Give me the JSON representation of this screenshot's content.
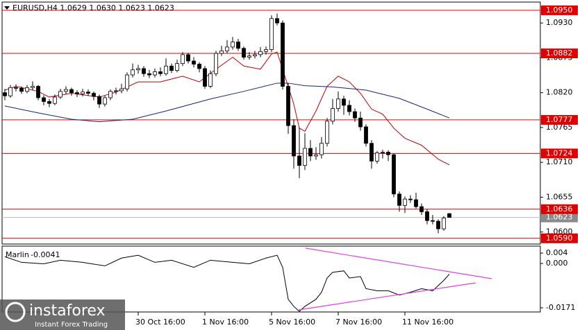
{
  "chart_data": [
    {
      "type": "candlestick",
      "title": "EURUSD,H4  1.0629 1.0630 1.0623 1.0623",
      "categories": [
        null,
        null,
        null,
        null,
        null,
        null,
        null,
        null,
        null,
        null,
        null,
        null,
        null,
        null,
        null,
        null,
        null,
        null,
        null,
        null,
        null,
        null,
        null,
        null,
        "30 Oct 16:00",
        null,
        null,
        null,
        null,
        null,
        null,
        null,
        null,
        null,
        null,
        null,
        "1 Nov 16:00",
        null,
        null,
        null,
        null,
        null,
        null,
        null,
        null,
        null,
        null,
        null,
        "5 Nov 16:00",
        null,
        null,
        null,
        null,
        null,
        null,
        null,
        null,
        null,
        null,
        null,
        "7 Nov 16:00",
        null,
        null,
        null,
        null,
        null,
        null,
        null,
        null,
        null,
        null,
        null,
        "11 Nov 16:00",
        null,
        null,
        null,
        null,
        null,
        null,
        null,
        null
      ],
      "open": [
        1.082,
        1.0815,
        1.0828,
        1.0827,
        1.0822,
        1.0828,
        1.083,
        1.0812,
        1.0806,
        1.0803,
        1.0813,
        1.0822,
        1.0825,
        1.082,
        1.0818,
        1.0821,
        1.0819,
        1.0814,
        1.0802,
        1.0812,
        1.0822,
        1.0823,
        1.0826,
        1.0848,
        1.0856,
        1.0858,
        1.085,
        1.0848,
        1.0853,
        1.085,
        1.0862,
        1.0855,
        1.0866,
        1.088,
        1.087,
        1.0865,
        1.0858,
        1.083,
        1.085,
        1.0882,
        1.0886,
        1.0892,
        1.09,
        1.089,
        1.0876,
        1.0878,
        1.088,
        1.0885,
        1.0888,
        1.0937,
        1.093,
        1.083,
        1.0768,
        1.072,
        1.0705,
        1.0732,
        1.072,
        1.0722,
        1.074,
        1.0775,
        1.0795,
        1.081,
        1.08,
        1.079,
        1.078,
        1.0766,
        1.074,
        1.0712,
        1.0725,
        1.0726,
        1.0722,
        1.066,
        1.0642,
        1.0652,
        1.0651,
        1.064,
        1.0632,
        1.0618,
        1.0617,
        1.0605,
        1.0629
      ],
      "high": [
        1.0826,
        1.0832,
        1.0833,
        1.083,
        1.0832,
        1.0838,
        1.0832,
        1.0816,
        1.081,
        1.0817,
        1.0826,
        1.083,
        1.0828,
        1.0824,
        1.0826,
        1.0825,
        1.0822,
        1.0817,
        1.0815,
        1.0825,
        1.0828,
        1.0834,
        1.0852,
        1.0866,
        1.0864,
        1.0862,
        1.0856,
        1.0858,
        1.086,
        1.0874,
        1.0866,
        1.0872,
        1.0884,
        1.0883,
        1.0876,
        1.0868,
        1.0862,
        1.0855,
        1.0886,
        1.0894,
        1.0903,
        1.0908,
        1.0905,
        1.0893,
        1.0884,
        1.0886,
        1.0892,
        1.0893,
        1.0942,
        1.0945,
        1.0934,
        1.0835,
        1.0778,
        1.0765,
        1.0756,
        1.0745,
        1.0734,
        1.075,
        1.078,
        1.081,
        1.0822,
        1.0815,
        1.0808,
        1.0795,
        1.079,
        1.077,
        1.0745,
        1.0728,
        1.073,
        1.0729,
        1.0724,
        1.0664,
        1.0656,
        1.0658,
        1.0662,
        1.0645,
        1.0636,
        1.0627,
        1.062,
        1.0625,
        1.063
      ],
      "low": [
        1.0808,
        1.0812,
        1.0822,
        1.0818,
        1.0819,
        1.0824,
        1.0808,
        1.08,
        1.0797,
        1.08,
        1.081,
        1.0818,
        1.0815,
        1.0813,
        1.0814,
        1.0815,
        1.0808,
        1.0796,
        1.0798,
        1.0808,
        1.0817,
        1.0819,
        1.0822,
        1.0844,
        1.085,
        1.0845,
        1.0843,
        1.0844,
        1.0846,
        1.0847,
        1.0851,
        1.0852,
        1.0862,
        1.0866,
        1.086,
        1.0852,
        1.0826,
        1.0827,
        1.0846,
        1.0878,
        1.0882,
        1.0888,
        1.0886,
        1.0872,
        1.0872,
        1.0874,
        1.0876,
        1.088,
        1.0884,
        1.0926,
        1.0825,
        1.0755,
        1.07,
        1.0685,
        1.0698,
        1.0712,
        1.0714,
        1.0716,
        1.0735,
        1.077,
        1.079,
        1.0785,
        1.0784,
        1.0774,
        1.076,
        1.0735,
        1.07,
        1.0708,
        1.0716,
        1.0712,
        1.0655,
        1.0632,
        1.063,
        1.0646,
        1.0637,
        1.0627,
        1.0612,
        1.0612,
        1.0598,
        1.0602,
        1.0623
      ],
      "close": [
        1.0815,
        1.0828,
        1.0827,
        1.0822,
        1.0828,
        1.083,
        1.0812,
        1.0806,
        1.0803,
        1.0813,
        1.0822,
        1.0825,
        1.082,
        1.0818,
        1.0821,
        1.0819,
        1.0814,
        1.0802,
        1.0812,
        1.0822,
        1.0823,
        1.0826,
        1.0848,
        1.0856,
        1.0858,
        1.085,
        1.0848,
        1.0853,
        1.085,
        1.0862,
        1.0855,
        1.0866,
        1.088,
        1.087,
        1.0865,
        1.0858,
        1.083,
        1.085,
        1.0882,
        1.0886,
        1.0892,
        1.09,
        1.089,
        1.0876,
        1.0878,
        1.088,
        1.0885,
        1.0888,
        1.0937,
        1.093,
        1.083,
        1.0768,
        1.072,
        1.0705,
        1.0732,
        1.072,
        1.0722,
        1.074,
        1.0775,
        1.0795,
        1.081,
        1.08,
        1.079,
        1.078,
        1.0766,
        1.074,
        1.0712,
        1.0725,
        1.0726,
        1.0722,
        1.066,
        1.0642,
        1.0652,
        1.0651,
        1.064,
        1.0632,
        1.0618,
        1.0617,
        1.0605,
        1.0622,
        1.0623
      ],
      "lines": [
        {
          "color": "#c00000",
          "x": [
            0,
            2,
            6,
            8,
            12,
            17,
            20,
            24,
            28,
            32,
            35,
            38,
            41,
            43,
            46,
            48,
            49,
            50,
            52,
            53,
            54,
            56,
            58,
            60,
            62,
            64,
            66,
            68,
            70,
            72,
            75,
            78,
            80
          ],
          "values": [
            1.0824,
            1.083,
            1.0822,
            1.0813,
            1.0819,
            1.0813,
            1.0821,
            1.0837,
            1.0837,
            1.0846,
            1.0837,
            1.0857,
            1.0876,
            1.0862,
            1.0857,
            1.0881,
            1.0884,
            1.0857,
            1.0802,
            1.0764,
            1.0759,
            1.0791,
            1.083,
            1.0846,
            1.0837,
            1.0819,
            1.0794,
            1.0786,
            1.0764,
            1.0748,
            1.0737,
            1.0715,
            1.0706
          ]
        },
        {
          "color": "#1a237e",
          "x": [
            0,
            6,
            12,
            17,
            23,
            29,
            37,
            43,
            49,
            51,
            54,
            59,
            65,
            71,
            76,
            80
          ],
          "values": [
            1.0799,
            1.0788,
            1.0778,
            1.0774,
            1.0778,
            1.0791,
            1.081,
            1.0822,
            1.0835,
            1.0835,
            1.0831,
            1.0829,
            1.0824,
            1.0811,
            1.0794,
            1.078
          ]
        }
      ],
      "levels": [
        {
          "value": 1.095,
          "label": "1.0950"
        },
        {
          "value": 1.0882,
          "label": "1.0882"
        },
        {
          "value": 1.0777,
          "label": "1.0777"
        },
        {
          "value": 1.0724,
          "label": "1.0724"
        },
        {
          "value": 1.0636,
          "label": "1.0636"
        },
        {
          "value": 1.059,
          "label": "1.0590"
        }
      ],
      "level_color": "#e00000",
      "current_price": {
        "value": 1.0623,
        "label": "1.0623"
      },
      "ylim": [
        1.0581,
        1.0963
      ],
      "yticks": [
        {
          "value": 1.093,
          "label": "1.0930"
        },
        1.0875,
        {
          "value": 1.082,
          "label": "1.0820"
        },
        1.0765,
        {
          "value": 1.071,
          "label": "1.0710"
        },
        1.0655,
        {
          "value": 1.06,
          "label": "1.0600"
        }
      ]
    },
    {
      "type": "line",
      "title": "Marlin",
      "current_value": -0.0041,
      "color": "#000000",
      "x": [
        0,
        3,
        7,
        10,
        14,
        18,
        21,
        24,
        27,
        30,
        34,
        37,
        41,
        44,
        47,
        49,
        50,
        51,
        52,
        53,
        54,
        56,
        57,
        58,
        59,
        61,
        62,
        64,
        65,
        67,
        69,
        71,
        73,
        75,
        77,
        79,
        80
      ],
      "values": [
        0.00263,
        0.00044,
        -0.00011,
        0.00126,
        0.00044,
        -0.00093,
        0.00208,
        0.00318,
        0.00044,
        0.00126,
        -0.00148,
        0.00126,
        0.00044,
        -0.00011,
        0.00208,
        0.00318,
        -0.00148,
        -0.01381,
        -0.01655,
        -0.01847,
        -0.01655,
        -0.01381,
        -0.01107,
        -0.00559,
        -0.0034,
        -0.00285,
        -0.00559,
        -0.00504,
        -0.0097,
        -0.01052,
        -0.01052,
        -0.01217,
        -0.01107,
        -0.0097,
        -0.01052,
        -0.0065,
        -0.0041
      ],
      "ylim": [
        -0.0187,
        0.0067
      ],
      "yticks": [
        0.004,
        {
          "value": 0,
          "label": "0.000"
        },
        -0.0171
      ]
    }
  ],
  "watermark": {
    "brand": "instaforex",
    "tagline": "Instant Forex Trading"
  }
}
